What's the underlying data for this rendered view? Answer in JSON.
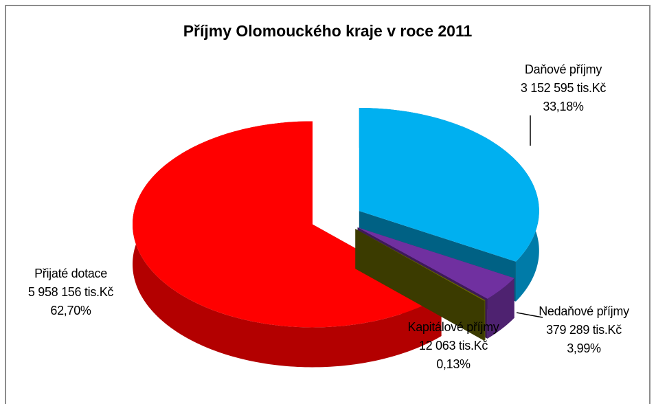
{
  "chart_data": {
    "type": "pie",
    "title": "Příjmy Olomouckého kraje v roce 2011",
    "categories": [
      "Daňové příjmy",
      "Nedaňové příjmy",
      "Kapitálové příjmy",
      "Přijaté dotace"
    ],
    "values": [
      33.18,
      3.99,
      0.13,
      62.7
    ],
    "value_labels": [
      "33,18%",
      "3,99%",
      "0,13%",
      "62,70%"
    ],
    "amounts": [
      3152595,
      379289,
      12063,
      5958156
    ],
    "amount_labels": [
      "3 152 595 tis.Kč",
      "379 289 tis.Kč",
      "12 063 tis.Kč",
      "5 958 156 tis.Kč"
    ],
    "colors": [
      "#00b0f0",
      "#7030a0",
      "#6b6b00",
      "#ff0000"
    ]
  }
}
